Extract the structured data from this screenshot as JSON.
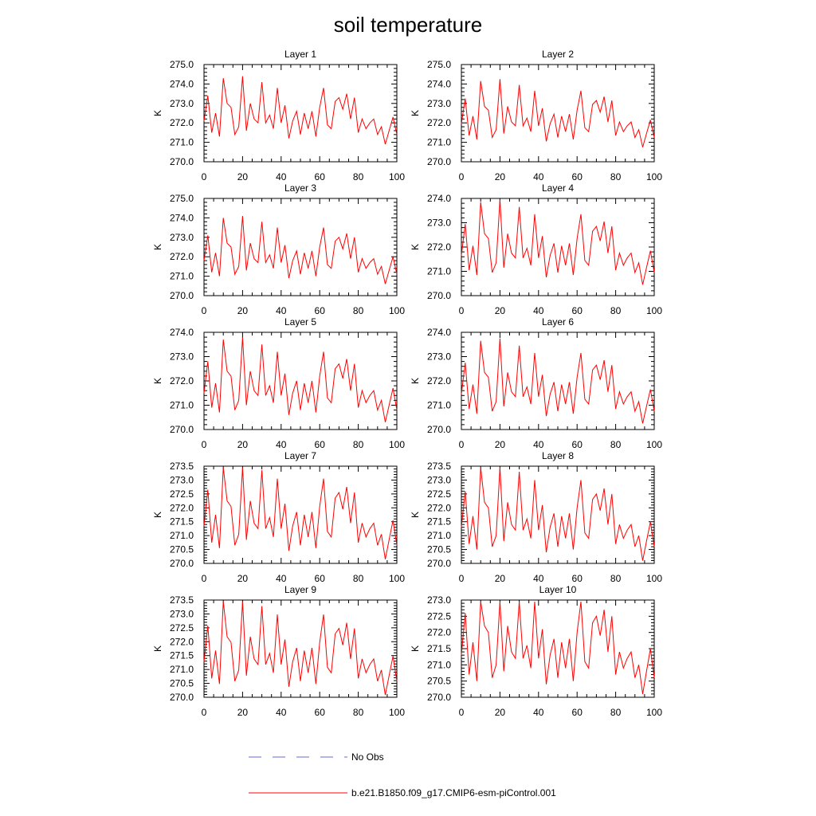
{
  "chart_data": {
    "type": "line",
    "title": "soil temperature",
    "xlabel": "",
    "ylabel": "K",
    "grid": false,
    "x_range": [
      0,
      100
    ],
    "x_ticks": [
      0,
      20,
      40,
      60,
      80,
      100
    ],
    "legend": [
      {
        "label": "No Obs",
        "style": "dashed",
        "color": "#6a6ad8"
      },
      {
        "label": "b.e21.B1850.f09_g17.CMIP6-esm-piControl.001",
        "style": "solid",
        "color": "#ff0000"
      }
    ],
    "panels": [
      {
        "title": "Layer 1",
        "ylabel": "K",
        "ylim": [
          270.0,
          275.0
        ],
        "yticks": [
          "270.0",
          "271.0",
          "272.0",
          "273.0",
          "274.0",
          "275.0"
        ],
        "offset": 0.2
      },
      {
        "title": "Layer 2",
        "ylabel": "K",
        "ylim": [
          270.0,
          275.0
        ],
        "yticks": [
          "270.0",
          "271.0",
          "272.0",
          "273.0",
          "274.0",
          "275.0"
        ],
        "offset": 0.05
      },
      {
        "title": "Layer 3",
        "ylabel": "K",
        "ylim": [
          270.0,
          275.0
        ],
        "yticks": [
          "270.0",
          "271.0",
          "272.0",
          "273.0",
          "274.0",
          "275.0"
        ],
        "offset": -0.1
      },
      {
        "title": "Layer 4",
        "ylabel": "K",
        "ylim": [
          270.0,
          274.0
        ],
        "yticks": [
          "270.0",
          "271.0",
          "272.0",
          "273.0",
          "274.0"
        ],
        "offset": -0.25
      },
      {
        "title": "Layer 5",
        "ylabel": "K",
        "ylim": [
          270.0,
          274.0
        ],
        "yticks": [
          "270.0",
          "271.0",
          "272.0",
          "273.0",
          "274.0"
        ],
        "offset": -0.4
      },
      {
        "title": "Layer 6",
        "ylabel": "K",
        "ylim": [
          270.0,
          274.0
        ],
        "yticks": [
          "270.0",
          "271.0",
          "272.0",
          "273.0",
          "274.0"
        ],
        "offset": -0.45
      },
      {
        "title": "Layer 7",
        "ylabel": "K",
        "ylim": [
          270.0,
          273.5
        ],
        "yticks": [
          "270.0",
          "270.5",
          "271.0",
          "271.5",
          "272.0",
          "272.5",
          "273.0",
          "273.5"
        ],
        "offset": -0.55
      },
      {
        "title": "Layer 8",
        "ylabel": "K",
        "ylim": [
          270.0,
          273.5
        ],
        "yticks": [
          "270.0",
          "270.5",
          "271.0",
          "271.5",
          "272.0",
          "272.5",
          "273.0",
          "273.5"
        ],
        "offset": -0.6
      },
      {
        "title": "Layer 9",
        "ylabel": "K",
        "ylim": [
          270.0,
          273.5
        ],
        "yticks": [
          "270.0",
          "270.5",
          "271.0",
          "271.5",
          "272.0",
          "272.5",
          "273.0",
          "273.5"
        ],
        "offset": -0.62
      },
      {
        "title": "Layer 10",
        "ylabel": "K",
        "ylim": [
          270.0,
          273.0
        ],
        "yticks": [
          "270.0",
          "270.5",
          "271.0",
          "271.5",
          "272.0",
          "272.5",
          "273.0"
        ],
        "offset": -0.6
      }
    ],
    "base_series": {
      "x": [
        0,
        2,
        4,
        6,
        8,
        10,
        12,
        14,
        16,
        18,
        20,
        22,
        24,
        26,
        28,
        30,
        32,
        34,
        36,
        38,
        40,
        42,
        44,
        46,
        48,
        50,
        52,
        54,
        56,
        58,
        60,
        62,
        64,
        66,
        68,
        70,
        72,
        74,
        76,
        78,
        80,
        82,
        84,
        86,
        88,
        90,
        92,
        94,
        96,
        98,
        100
      ],
      "values": [
        271.9,
        273.2,
        271.3,
        272.3,
        271.1,
        274.1,
        272.8,
        272.6,
        271.2,
        271.6,
        274.2,
        271.4,
        272.8,
        272.0,
        271.8,
        273.9,
        271.8,
        272.2,
        271.5,
        273.6,
        271.8,
        272.7,
        271.0,
        271.9,
        272.4,
        271.2,
        272.3,
        271.5,
        272.4,
        271.1,
        272.6,
        273.6,
        271.7,
        271.5,
        272.9,
        273.1,
        272.5,
        273.3,
        272.0,
        273.1,
        271.3,
        272.0,
        271.5,
        271.8,
        272.0,
        271.2,
        271.6,
        270.7,
        271.4,
        272.1,
        271.2
      ]
    }
  }
}
